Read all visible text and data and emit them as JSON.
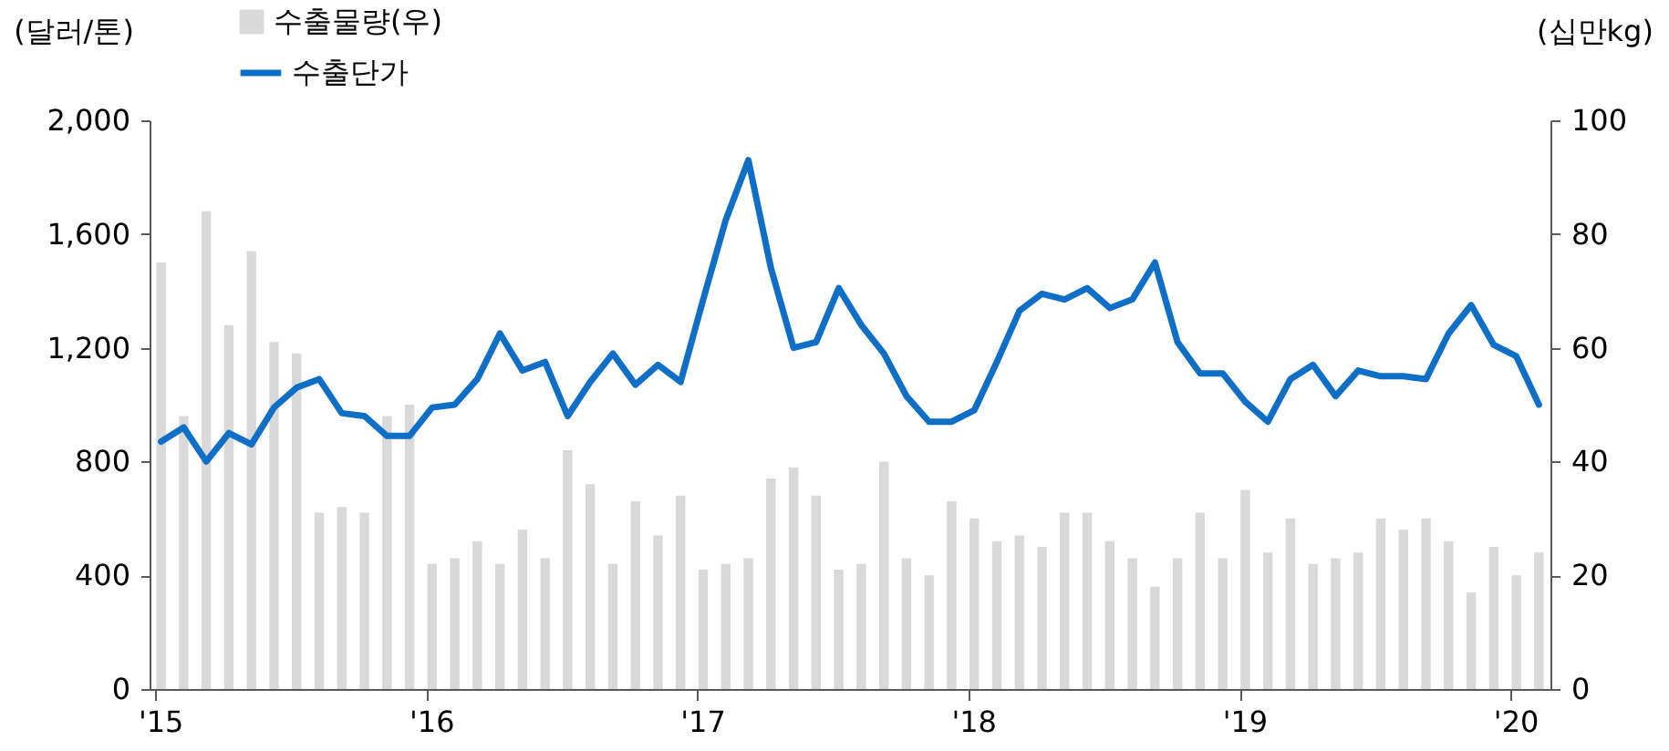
{
  "chart_data": {
    "type": "bar",
    "categories": [
      "'15",
      null,
      null,
      null,
      null,
      null,
      null,
      null,
      null,
      null,
      null,
      null,
      "'16",
      null,
      null,
      null,
      null,
      null,
      null,
      null,
      null,
      null,
      null,
      null,
      "'17",
      null,
      null,
      null,
      null,
      null,
      null,
      null,
      null,
      null,
      null,
      null,
      "'18",
      null,
      null,
      null,
      null,
      null,
      null,
      null,
      null,
      null,
      null,
      null,
      "'19",
      null,
      null,
      null,
      null,
      null,
      null,
      null,
      null,
      null,
      null,
      null,
      "'20",
      null
    ],
    "ylabel": "(달러/톤)",
    "y2label": "(십만kg)",
    "series": [
      {
        "name": "수출물량(우)",
        "axis": "y2",
        "color": "#d9d9d9",
        "values": [
          75,
          48,
          84,
          64,
          77,
          61,
          59,
          31,
          32,
          31,
          48,
          50,
          22,
          23,
          26,
          22,
          28,
          23,
          42,
          36,
          22,
          33,
          27,
          34,
          21,
          22,
          23,
          37,
          39,
          34,
          21,
          22,
          40,
          23,
          20,
          33,
          30,
          26,
          27,
          25,
          31,
          31,
          26,
          23,
          18,
          23,
          31,
          23,
          35,
          24,
          30,
          22,
          23,
          24,
          30,
          28,
          30,
          26,
          17,
          25,
          20,
          24
        ]
      },
      {
        "name": "수출단가",
        "type": "line",
        "color": "#0f6fc6",
        "values": [
          870,
          920,
          800,
          900,
          860,
          990,
          1060,
          1090,
          970,
          960,
          890,
          890,
          990,
          1000,
          1090,
          1250,
          1120,
          1150,
          960,
          1080,
          1180,
          1070,
          1140,
          1080,
          1370,
          1650,
          1860,
          1480,
          1200,
          1220,
          1410,
          1280,
          1180,
          1030,
          940,
          940,
          980,
          1150,
          1330,
          1390,
          1370,
          1410,
          1340,
          1370,
          1500,
          1220,
          1110,
          1110,
          1010,
          940,
          1090,
          1140,
          1030,
          1120,
          1100,
          1100,
          1090,
          1250,
          1350,
          1210,
          1170,
          1000
        ]
      }
    ],
    "ylim": [
      0,
      2000
    ],
    "yticks": [
      0,
      400,
      800,
      {
        "value": 1200,
        "label": "1,200"
      },
      {
        "value": 1600,
        "label": "1,600"
      },
      {
        "value": 2000,
        "label": "2,000"
      }
    ],
    "y2lim": [
      0,
      100
    ],
    "y2ticks": [
      0,
      20,
      40,
      60,
      80,
      100
    ],
    "grid": false,
    "legend": "top left"
  }
}
